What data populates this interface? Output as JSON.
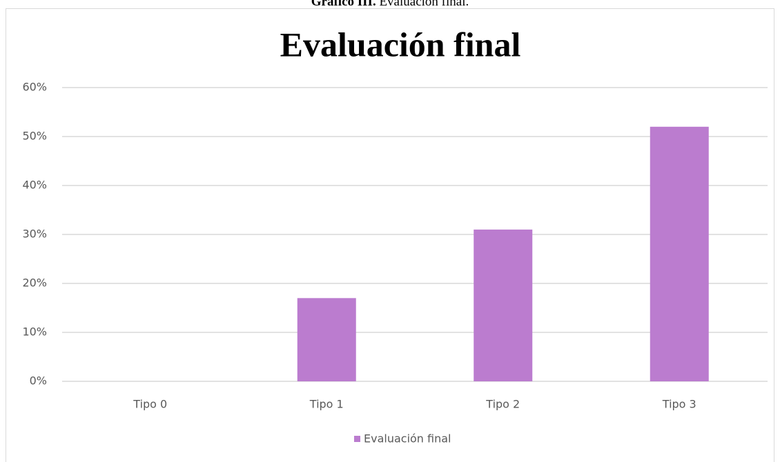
{
  "chart_data": {
    "type": "bar",
    "caption_label": "Gráfico III.",
    "caption_text": "Evaluación final.",
    "title": "Evaluación final",
    "categories": [
      "Tipo 0",
      "Tipo 1",
      "Tipo 2",
      "Tipo 3"
    ],
    "series": [
      {
        "name": "Evaluación final",
        "color": "#bb7ccf",
        "values": [
          0,
          17,
          31,
          52
        ]
      }
    ],
    "ylim": [
      0,
      60
    ],
    "yticks": [
      {
        "value": 0,
        "label": "0%"
      },
      {
        "value": 10,
        "label": "10%"
      },
      {
        "value": 20,
        "label": "20%"
      },
      {
        "value": 30,
        "label": "30%"
      },
      {
        "value": 40,
        "label": "40%"
      },
      {
        "value": 50,
        "label": "50%"
      },
      {
        "value": 60,
        "label": "60%"
      }
    ],
    "grid": true,
    "legend": "bottom"
  }
}
